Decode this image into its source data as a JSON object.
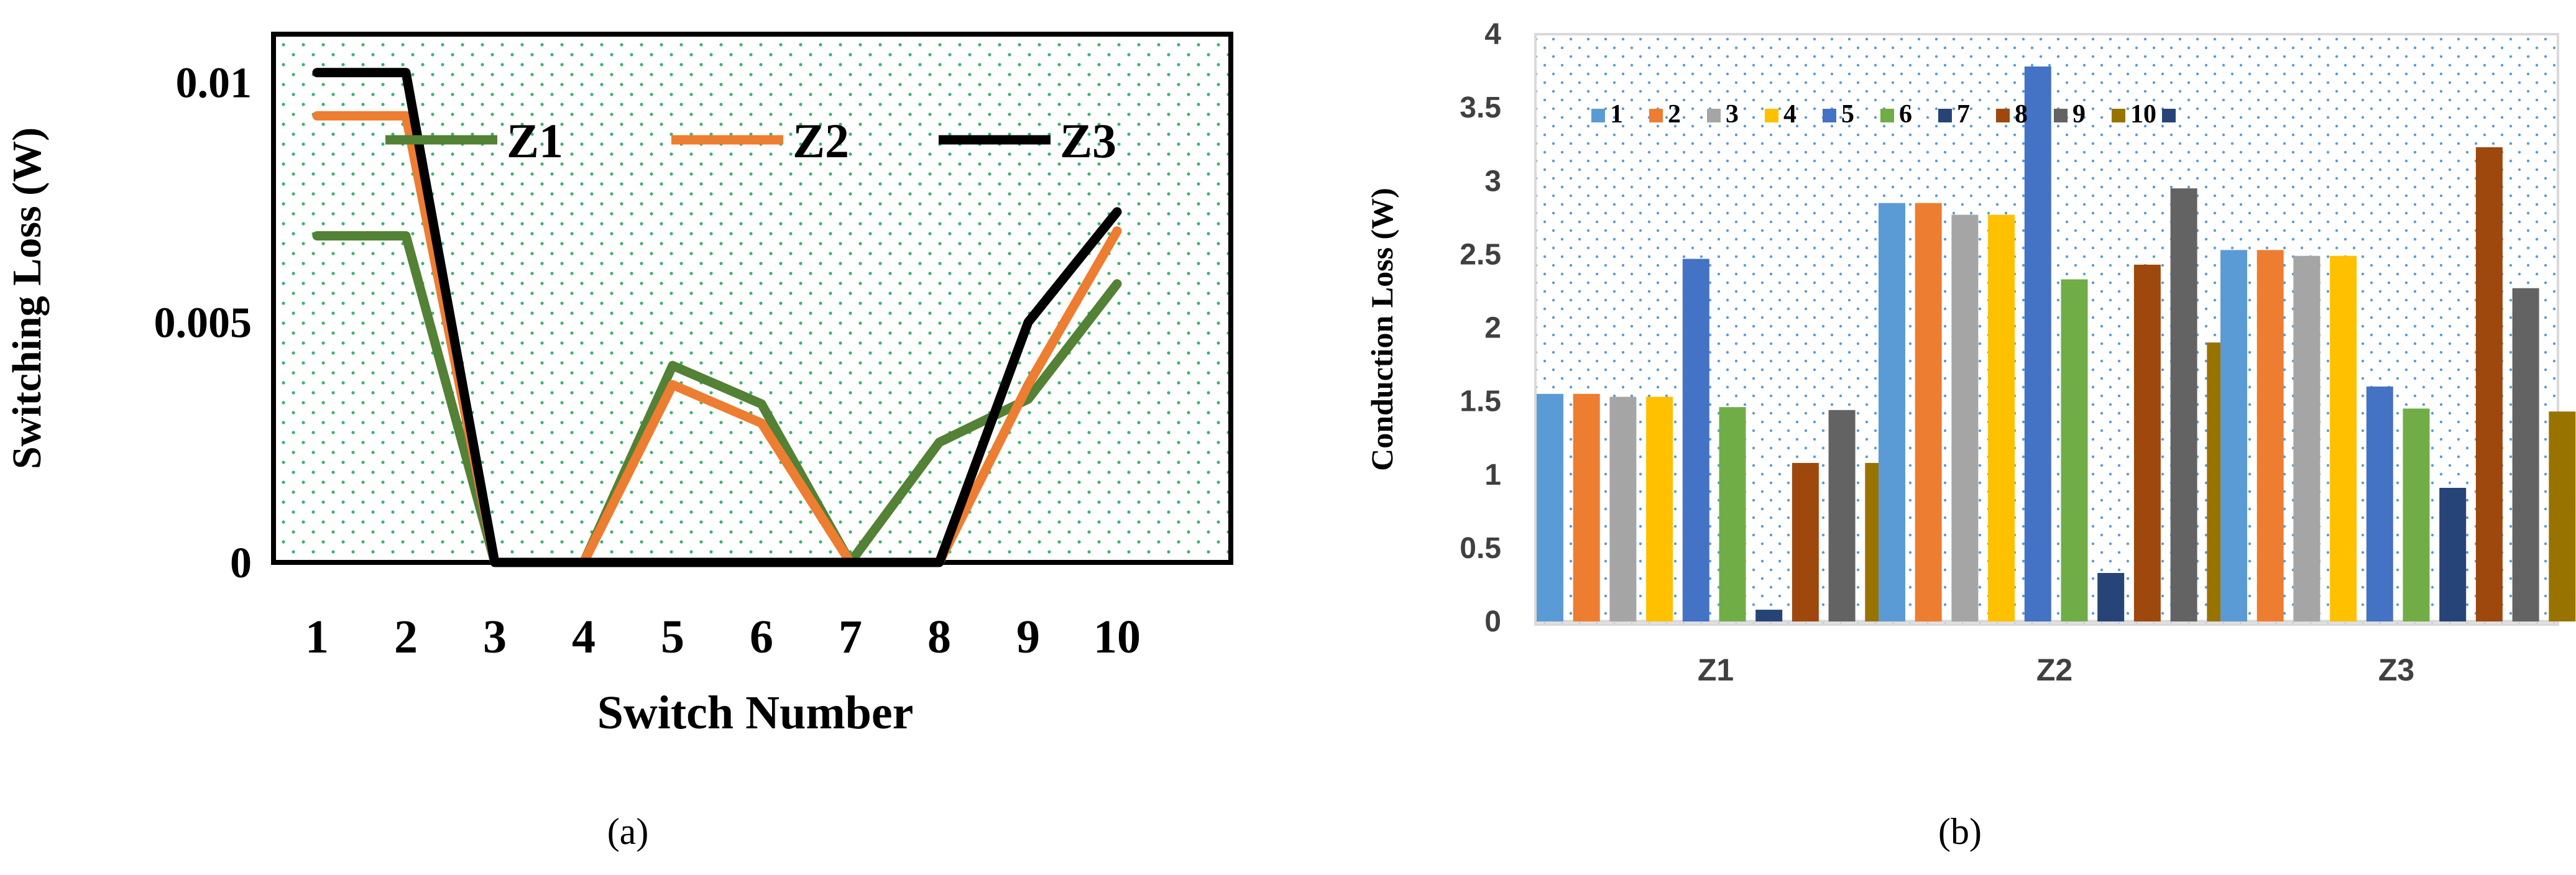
{
  "colors": {
    "z1": "#538135",
    "z2": "#ED7D31",
    "z3": "#000000",
    "dotsA": "#3cb371",
    "dotsB": "#5b9bd5",
    "tickText": "#404040",
    "series": [
      "#5B9BD5",
      "#ED7D31",
      "#A5A5A5",
      "#FFC000",
      "#4472C4",
      "#70AD47",
      "#264478",
      "#9E480E",
      "#636363",
      "#997300"
    ]
  },
  "panel_a": {
    "caption": "(a)"
  },
  "panel_b": {
    "caption": "(b)"
  },
  "chart_data": [
    {
      "type": "line",
      "title": "",
      "xlabel": "Switch Number",
      "ylabel": "Switching Loss (W)",
      "x": [
        "1",
        "2",
        "3",
        "4",
        "5",
        "6",
        "7",
        "8",
        "9",
        "10"
      ],
      "yticks": [
        "0",
        "0.005",
        "0.01"
      ],
      "ylim": [
        0,
        0.011
      ],
      "legend_position": "top",
      "series": [
        {
          "name": "Z1",
          "values": [
            0.0068,
            0.0068,
            0,
            0,
            0.0041,
            0.0033,
            0,
            0.0025,
            0.0034,
            0.0058
          ]
        },
        {
          "name": "Z2",
          "values": [
            0.0093,
            0.0093,
            0,
            0,
            0.0037,
            0.0029,
            0,
            0,
            0.0037,
            0.0069
          ]
        },
        {
          "name": "Z3",
          "values": [
            0.0102,
            0.0102,
            0,
            0,
            0,
            0,
            0,
            0,
            0.005,
            0.0073
          ]
        }
      ]
    },
    {
      "type": "bar",
      "title": "",
      "xlabel": "",
      "ylabel": "Conduction Loss (W)",
      "categories": [
        "Z1",
        "Z2",
        "Z3"
      ],
      "yticks": [
        "0",
        "0.5",
        "1",
        "1.5",
        "2",
        "2.5",
        "3",
        "3.5",
        "4"
      ],
      "ylim": [
        0,
        4
      ],
      "legend_position": "top-left",
      "series": [
        {
          "name": "1",
          "values": [
            1.55,
            2.85,
            2.53
          ]
        },
        {
          "name": "2",
          "values": [
            1.55,
            2.85,
            2.53
          ]
        },
        {
          "name": "3",
          "values": [
            1.53,
            2.77,
            2.49
          ]
        },
        {
          "name": "4",
          "values": [
            1.53,
            2.77,
            2.49
          ]
        },
        {
          "name": "5",
          "values": [
            2.47,
            3.78,
            1.6
          ]
        },
        {
          "name": "6",
          "values": [
            1.46,
            2.33,
            1.45
          ]
        },
        {
          "name": "7",
          "values": [
            0.08,
            0.33,
            0.91
          ]
        },
        {
          "name": "8",
          "values": [
            1.08,
            2.43,
            3.23
          ]
        },
        {
          "name": "9",
          "values": [
            1.44,
            2.95,
            2.27
          ]
        },
        {
          "name": "10",
          "values": [
            1.08,
            1.9,
            1.43
          ]
        }
      ]
    }
  ]
}
